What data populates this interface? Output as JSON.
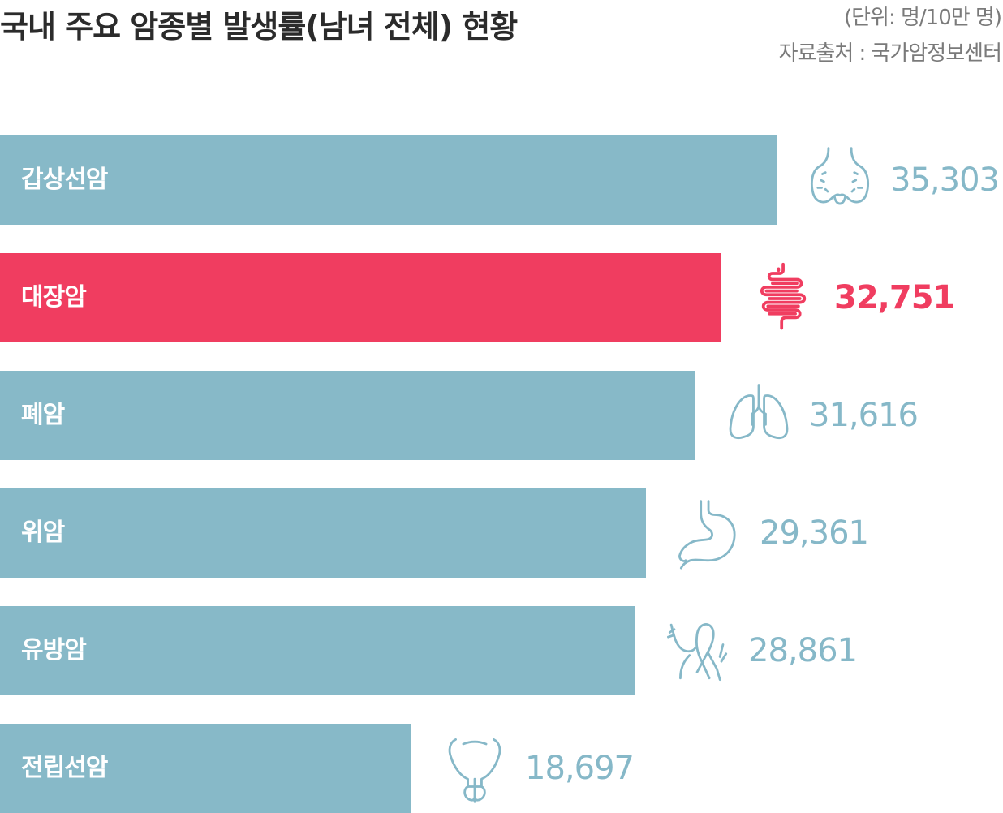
{
  "title": "국내 주요 암종별 발생률(남녀 전체) 현황",
  "unit": "(단위: 명/10만 명)",
  "source": "자료출처 : 국가암정보센터",
  "colors": {
    "bar": "#87b9c8",
    "highlight": "#f03d60",
    "value": "#86b8c8"
  },
  "chart_data": {
    "type": "bar",
    "orientation": "horizontal",
    "categories": [
      "갑상선암",
      "대장암",
      "폐암",
      "위암",
      "유방암",
      "전립선암"
    ],
    "values": [
      35303,
      32751,
      31616,
      29361,
      28861,
      18697
    ],
    "value_labels": [
      "35,303",
      "32,751",
      "31,616",
      "29,361",
      "28,861",
      "18,697"
    ],
    "icons": [
      "thyroid-icon",
      "intestine-icon",
      "lungs-icon",
      "stomach-icon",
      "breast-icon",
      "prostate-icon"
    ],
    "highlight_index": 1
  }
}
